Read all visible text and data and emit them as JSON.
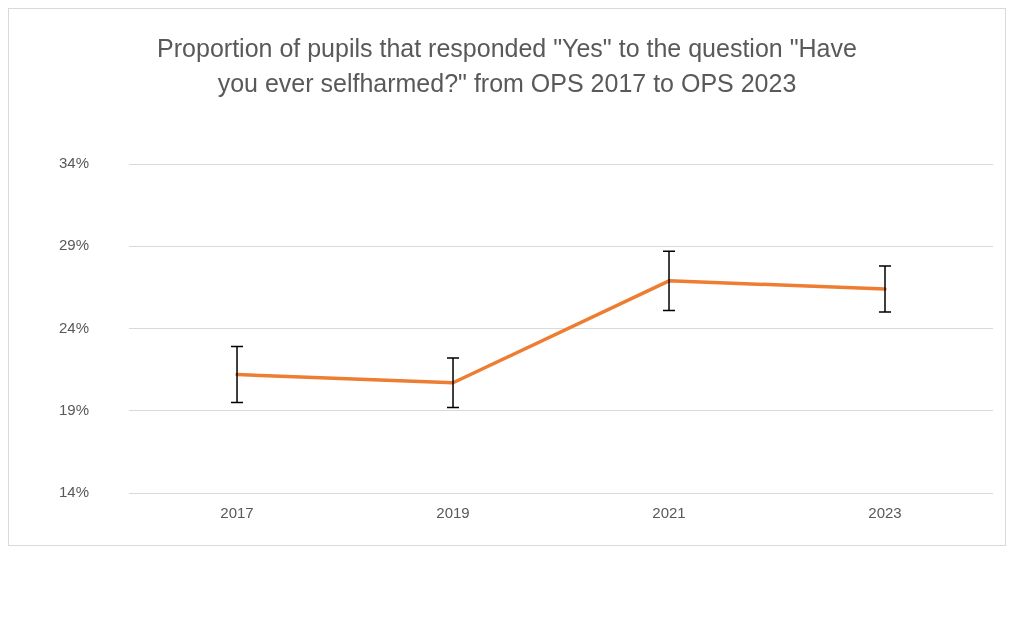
{
  "chart_data": {
    "type": "line",
    "title": "Proportion of pupils that responded \"Yes\" to the question \"Have you ever selfharmed?\" from OPS 2017 to OPS 2023",
    "categories": [
      "2017",
      "2019",
      "2021",
      "2023"
    ],
    "series": [
      {
        "color": "#ed7d31",
        "values": [
          21.2,
          20.7,
          26.9,
          26.4
        ],
        "errors": [
          1.7,
          1.5,
          1.8,
          1.4
        ]
      }
    ],
    "ylim": [
      14,
      34
    ],
    "yticks": [
      {
        "value": 14,
        "label": "14%"
      },
      {
        "value": 19,
        "label": "19%"
      },
      {
        "value": 24,
        "label": "24%"
      },
      {
        "value": 29,
        "label": "29%"
      },
      {
        "value": 34,
        "label": "34%"
      }
    ],
    "grid": "y",
    "legend": false,
    "marker": "none",
    "line_style": "solid"
  }
}
